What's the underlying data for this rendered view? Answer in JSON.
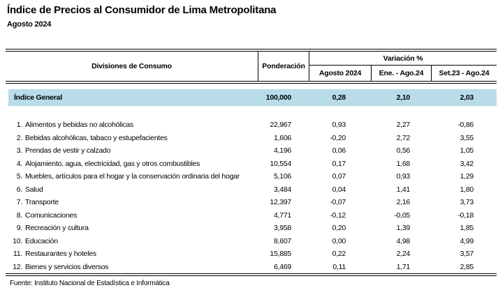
{
  "page": {
    "title": "Índice de Precios al Consumidor de Lima Metropolitana",
    "subtitle": "Agosto 2024",
    "source": "Fuente: Instituto Nacional de Estadística e Informática"
  },
  "colors": {
    "highlight_row_bg": "#b8dce8",
    "border": "#000000"
  },
  "table": {
    "headers": {
      "divisions": "Divisiones de Consumo",
      "weight": "Ponderación",
      "variation_group": "Variación %",
      "periods": [
        "Agosto 2024",
        "Ene. - Ago.24",
        "Set.23 - Ago.24"
      ]
    },
    "general_index": {
      "label": "Índice General",
      "weight": "100,000",
      "aug": "0,28",
      "jan_aug": "2,10",
      "sep_aug": "2,03"
    },
    "rows": [
      {
        "num": "1.",
        "name": "Alimentos y bebidas no alcohólicas",
        "weight": "22,967",
        "aug": "0,93",
        "jan_aug": "2,27",
        "sep_aug": "-0,86"
      },
      {
        "num": "2.",
        "name": "Bebidas alcohólicas, tabaco y estupefacientes",
        "weight": "1,606",
        "aug": "-0,20",
        "jan_aug": "2,72",
        "sep_aug": "3,55"
      },
      {
        "num": "3.",
        "name": "Prendas de vestir y calzado",
        "weight": "4,196",
        "aug": "0,06",
        "jan_aug": "0,56",
        "sep_aug": "1,05"
      },
      {
        "num": "4.",
        "name": "Alojamiento, agua, electricidad, gas y otros combustibles",
        "weight": "10,554",
        "aug": "0,17",
        "jan_aug": "1,68",
        "sep_aug": "3,42"
      },
      {
        "num": "5.",
        "name": "Muebles, artículos para el hogar y la conservación ordinaria del hogar",
        "weight": "5,106",
        "aug": "0,07",
        "jan_aug": "0,93",
        "sep_aug": "1,29"
      },
      {
        "num": "6.",
        "name": "Salud",
        "weight": "3,484",
        "aug": "0,04",
        "jan_aug": "1,41",
        "sep_aug": "1,80"
      },
      {
        "num": "7.",
        "name": "Transporte",
        "weight": "12,397",
        "aug": "-0,07",
        "jan_aug": "2,16",
        "sep_aug": "3,73"
      },
      {
        "num": "8.",
        "name": "Comunicaciones",
        "weight": "4,771",
        "aug": "-0,12",
        "jan_aug": "-0,05",
        "sep_aug": "-0,18"
      },
      {
        "num": "9.",
        "name": "Recreación y cultura",
        "weight": "3,958",
        "aug": "0,20",
        "jan_aug": "1,39",
        "sep_aug": "1,85"
      },
      {
        "num": "10.",
        "name": "Educación",
        "weight": "8,607",
        "aug": "0,00",
        "jan_aug": "4,98",
        "sep_aug": "4,99"
      },
      {
        "num": "11.",
        "name": "Restaurantes y hoteles",
        "weight": "15,885",
        "aug": "0,22",
        "jan_aug": "2,24",
        "sep_aug": "3,57"
      },
      {
        "num": "12.",
        "name": "Bienes y servicios diversos",
        "weight": "6,469",
        "aug": "0,11",
        "jan_aug": "1,71",
        "sep_aug": "2,85"
      }
    ]
  }
}
